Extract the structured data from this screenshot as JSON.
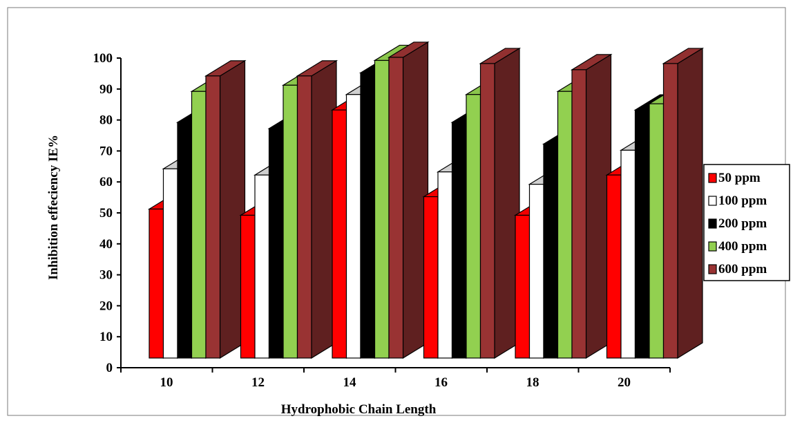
{
  "chart_data": {
    "type": "bar",
    "title": "",
    "xlabel": "Hydrophobic Chain Length",
    "ylabel": "Inhibition effeciency  IE%",
    "categories": [
      "10",
      "12",
      "14",
      "16",
      "18",
      "20"
    ],
    "ylim": [
      0,
      100
    ],
    "yticks": [
      "0",
      "10",
      "20",
      "30",
      "40",
      "50",
      "60",
      "70",
      "80",
      "90",
      "100"
    ],
    "three_d": true,
    "grid": false,
    "legend_position": "right",
    "series": [
      {
        "name": "50 ppm",
        "color": "#ff0000",
        "values": [
          49,
          47,
          81,
          53,
          47,
          60
        ]
      },
      {
        "name": "100 ppm",
        "color": "#ffffff",
        "values": [
          62,
          60,
          86,
          61,
          57,
          68
        ]
      },
      {
        "name": "200 ppm",
        "color": "#000000",
        "values": [
          77,
          75,
          93,
          77,
          70,
          81
        ]
      },
      {
        "name": "400 ppm",
        "color": "#92d050",
        "values": [
          87,
          89,
          97,
          86,
          87,
          83
        ]
      },
      {
        "name": "600 ppm",
        "color": "#993333",
        "values": [
          92,
          92,
          98,
          96,
          94,
          96
        ]
      }
    ]
  }
}
